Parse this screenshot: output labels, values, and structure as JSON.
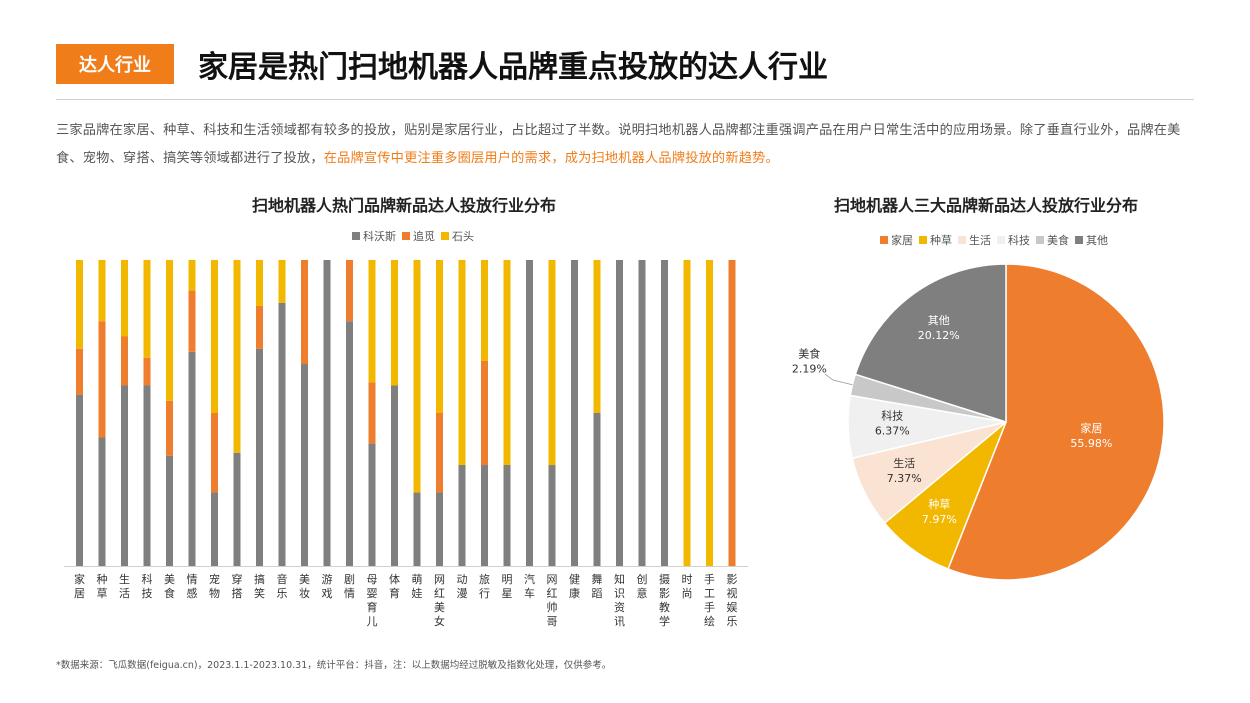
{
  "header": {
    "tag": "达人行业",
    "title": "家居是热门扫地机器人品牌重点投放的达人行业"
  },
  "intro": {
    "part1": "三家品牌在家居、种草、科技和生活领域都有较多的投放，贴别是家居行业，占比超过了半数。说明扫地机器人品牌都注重强调产品在用户日常生活中的应用场景。除了垂直行业外，品牌在美食、宠物、穿搭、搞笑等领域都进行了投放，",
    "highlight": "在品牌宣传中更注重多圈层用户的需求，成为扫地机器人品牌投放的新趋势。"
  },
  "footnote": "*数据来源：飞瓜数据(feigua.cn)，2023.1.1-2023.10.31，统计平台：抖音，注：以上数据均经过脱敏及指数化处理，仅供参考。",
  "colors": {
    "accent": "#f07d19",
    "gray": "#7f7f7f",
    "orange": "#ee7d2e",
    "yellow": "#f2b800"
  },
  "chart_data": [
    {
      "type": "bar",
      "stacked": "100%",
      "title": "扫地机器人热门品牌新品达人投放行业分布",
      "legend_position": "top",
      "categories": [
        "家居",
        "种草",
        "生活",
        "科技",
        "美食",
        "情感",
        "宠物",
        "穿搭",
        "搞笑",
        "音乐",
        "美妆",
        "游戏",
        "剧情",
        "母婴育儿",
        "体育",
        "萌娃",
        "网红美女",
        "动漫",
        "旅行",
        "明星",
        "汽车",
        "网红帅哥",
        "健康",
        "舞蹈",
        "知识资讯",
        "创意",
        "摄影教学",
        "时尚",
        "手工手绘",
        "影视娱乐"
      ],
      "ylim": [
        0,
        1
      ],
      "series": [
        {
          "name": "科沃斯",
          "color": "#7f7f7f",
          "values": [
            0.56,
            0.42,
            0.59,
            0.59,
            0.36,
            0.7,
            0.24,
            0.37,
            0.71,
            0.86,
            0.66,
            1.0,
            0.8,
            0.4,
            0.59,
            0.24,
            0.24,
            0.33,
            0.33,
            0.33,
            1.0,
            0.33,
            1.0,
            0.5,
            1.0,
            1.0,
            1.0,
            0.0,
            0.0,
            0.0
          ]
        },
        {
          "name": "追觅",
          "color": "#ee7d2e",
          "values": [
            0.15,
            0.38,
            0.16,
            0.09,
            0.18,
            0.2,
            0.26,
            0.0,
            0.14,
            0.0,
            0.34,
            0.0,
            0.2,
            0.2,
            0.0,
            0.0,
            0.26,
            0.0,
            0.34,
            0.0,
            0.0,
            0.0,
            0.0,
            0.0,
            0.0,
            0.0,
            0.0,
            0.0,
            0.0,
            1.0
          ]
        },
        {
          "name": "石头",
          "color": "#f2b800",
          "values": [
            0.29,
            0.2,
            0.25,
            0.32,
            0.46,
            0.1,
            0.5,
            0.63,
            0.15,
            0.14,
            0.0,
            0.0,
            0.0,
            0.4,
            0.41,
            0.76,
            0.5,
            0.67,
            0.33,
            0.67,
            0.0,
            0.67,
            0.0,
            0.5,
            0.0,
            0.0,
            0.0,
            1.0,
            1.0,
            0.0
          ]
        }
      ]
    },
    {
      "type": "pie",
      "title": "扫地机器人三大品牌新品达人投放行业分布",
      "legend_position": "top",
      "slices": [
        {
          "label": "家居",
          "value": 55.98,
          "display": "55.98%",
          "color": "#ee7d2e"
        },
        {
          "label": "种草",
          "value": 7.97,
          "display": "7.97%",
          "color": "#f2b800"
        },
        {
          "label": "生活",
          "value": 7.37,
          "display": "7.37%",
          "color": "#fbe3d3"
        },
        {
          "label": "科技",
          "value": 6.37,
          "display": "6.37%",
          "color": "#f0f0f0"
        },
        {
          "label": "美食",
          "value": 2.19,
          "display": "2.19%",
          "color": "#c8c8c8"
        },
        {
          "label": "其他",
          "value": 20.12,
          "display": "20.12%",
          "color": "#7f7f7f"
        }
      ]
    }
  ]
}
